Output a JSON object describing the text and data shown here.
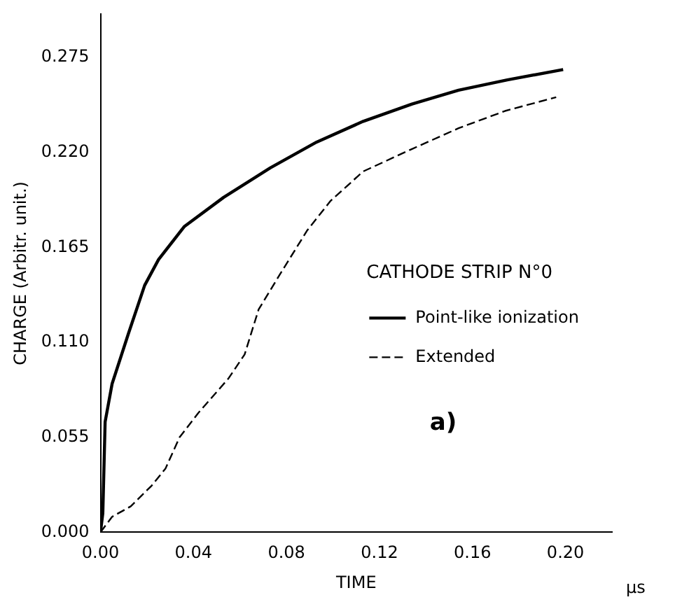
{
  "chart_data": {
    "type": "line",
    "xlabel": "TIME",
    "ylabel": "CHARGE (Arbitr. unit.)",
    "legend_title": "CATHODE STRIP N°0",
    "legend": "right",
    "grid": false,
    "marker": "none",
    "xlim": [
      0,
      0.22
    ],
    "ylim": [
      0,
      0.3
    ],
    "xticks": [
      {
        "value": 0,
        "label": "0.00"
      },
      0.04,
      0.08,
      0.12,
      0.16,
      {
        "value": 0.2,
        "label": "0.20"
      }
    ],
    "yticks": [
      {
        "value": 0,
        "label": "0.000"
      },
      0.055,
      {
        "value": 0.11,
        "label": "0.110"
      },
      0.165,
      {
        "value": 0.22,
        "label": "0.220"
      },
      0.275
    ],
    "annotations": [
      "a)",
      "μs"
    ],
    "series": [
      {
        "name": "Point-like ionization",
        "color": "#000000",
        "line_style": "solid",
        "x": [
          0,
          0.001,
          0.002,
          0.005,
          0.012,
          0.019,
          0.025,
          0.036,
          0.053,
          0.073,
          0.093,
          0.113,
          0.134,
          0.154,
          0.175,
          0.199
        ],
        "values": [
          0,
          0.011,
          0.064,
          0.086,
          0.115,
          0.143,
          0.158,
          0.177,
          0.194,
          0.211,
          0.226,
          0.238,
          0.248,
          0.256,
          0.262,
          0.268
        ]
      },
      {
        "name": "Extended",
        "color": "#000000",
        "line_style": "dashed",
        "x": [
          0,
          0.005,
          0.013,
          0.022,
          0.028,
          0.034,
          0.042,
          0.055,
          0.062,
          0.068,
          0.077,
          0.089,
          0.099,
          0.113,
          0.134,
          0.154,
          0.174,
          0.196
        ],
        "values": [
          0,
          0.009,
          0.015,
          0.027,
          0.037,
          0.055,
          0.069,
          0.089,
          0.103,
          0.129,
          0.149,
          0.175,
          0.192,
          0.209,
          0.222,
          0.234,
          0.244,
          0.252
        ]
      }
    ]
  }
}
